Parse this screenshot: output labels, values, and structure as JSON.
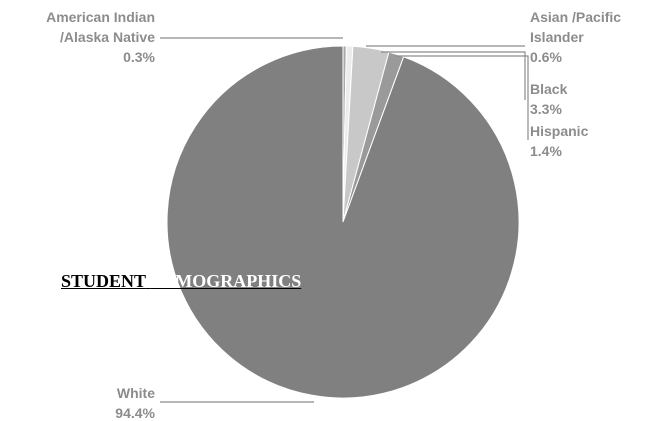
{
  "chart_data": {
    "type": "pie",
    "slices": [
      {
        "name": "White",
        "value": 94.4,
        "label_name": "White",
        "label_value": "94.4%",
        "color": "#808080"
      },
      {
        "name": "American Indian /Alaska Native",
        "value": 0.3,
        "label_name": [
          "American Indian",
          "/Alaska Native"
        ],
        "label_value": "0.3%",
        "color": "#a8a8a8"
      },
      {
        "name": "Asian /Pacific Islander",
        "value": 0.6,
        "label_name": [
          "Asian /Pacific",
          "Islander"
        ],
        "label_value": "0.6%",
        "color": "#ececec"
      },
      {
        "name": "Black",
        "value": 3.3,
        "label_name": [
          "Black"
        ],
        "label_value": "3.3%",
        "color": "#c8c8c8"
      },
      {
        "name": "Hispanic",
        "value": 1.4,
        "label_name": [
          "Hispanic"
        ],
        "label_value": "1.4%",
        "color": "#9a9a9a"
      }
    ],
    "title_parts": [
      "STUDENT",
      "DEMOGRAPHICS"
    ],
    "legend": "none"
  }
}
